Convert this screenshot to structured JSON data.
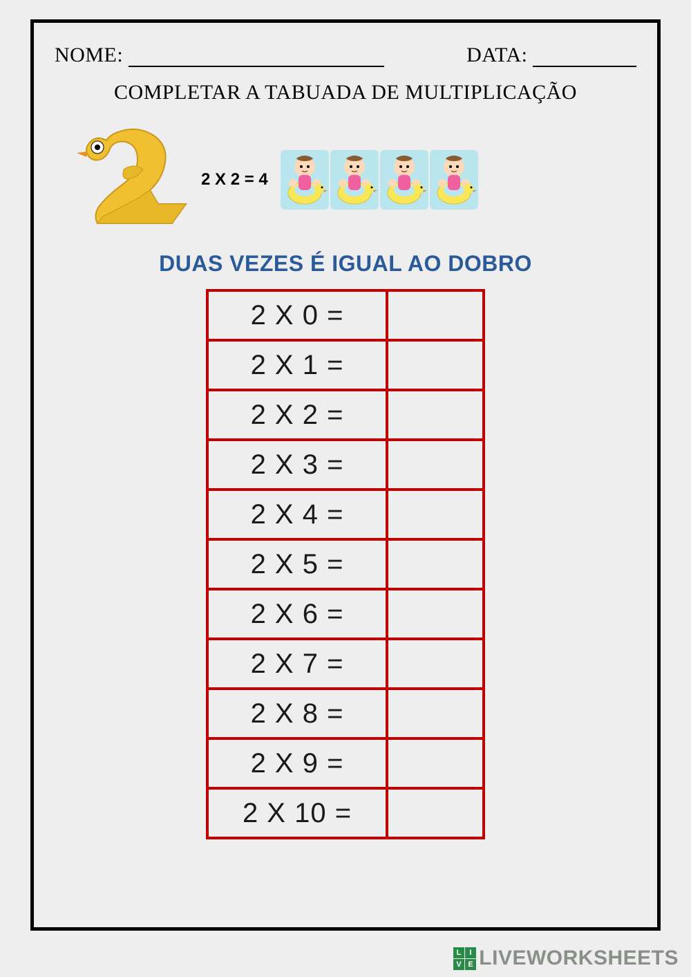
{
  "header": {
    "name_label": "NOME:",
    "date_label": "DATA:"
  },
  "title": "COMPLETAR A TABUADA DE MULTIPLICAÇÃO",
  "example": {
    "text": "2 X 2 = 4",
    "baby_count": 4
  },
  "subtitle": "DUAS VEZES É IGUAL AO DOBRO",
  "table": {
    "border_color": "#c00000",
    "text_color": "#1a1a1a",
    "font_size": 40,
    "rows": [
      {
        "problem": "2 X 0  =",
        "answer": ""
      },
      {
        "problem": "2 X 1 =",
        "answer": ""
      },
      {
        "problem": "2 X 2  =",
        "answer": ""
      },
      {
        "problem": "2 X 3  =",
        "answer": ""
      },
      {
        "problem": "2 X 4  =",
        "answer": ""
      },
      {
        "problem": "2 X 5  =",
        "answer": ""
      },
      {
        "problem": "2 X 6  =",
        "answer": ""
      },
      {
        "problem": "2 X 7  =",
        "answer": ""
      },
      {
        "problem": "2 X 8  =",
        "answer": ""
      },
      {
        "problem": "2 X 9  =",
        "answer": ""
      },
      {
        "problem": "2 X 10  =",
        "answer": ""
      }
    ]
  },
  "watermark": {
    "badge": [
      "L",
      "I",
      "V",
      "E"
    ],
    "text": "LIVEWORKSHEETS"
  },
  "colors": {
    "page_bg": "#eeeeee",
    "frame_border": "#000000",
    "subtitle_color": "#2a5a9a",
    "swan_yellow": "#f0c030",
    "swan_dark": "#c89820",
    "watermark_color": "#8a8f8a"
  }
}
